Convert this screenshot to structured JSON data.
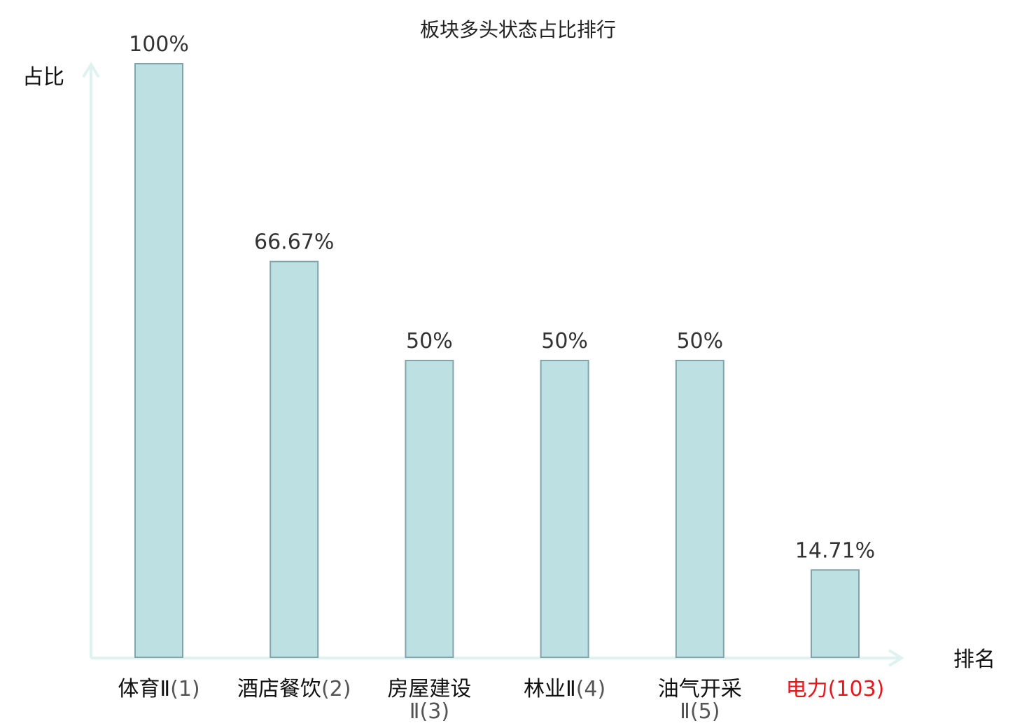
{
  "chart_data": {
    "type": "bar",
    "title": "板块多头状态占比排行",
    "ylabel": "占比",
    "xlabel": "排名",
    "ylim": [
      0,
      100
    ],
    "grid": false,
    "categories": [
      {
        "name": "体育Ⅱ",
        "rank": "(1)",
        "value": 100,
        "label": "100%",
        "highlight": false
      },
      {
        "name": "酒店餐饮",
        "rank": "(2)",
        "value": 66.67,
        "label": "66.67%",
        "highlight": false
      },
      {
        "name": "房屋建设",
        "name_line2": "Ⅱ",
        "rank": "(3)",
        "value": 50,
        "label": "50%",
        "highlight": false
      },
      {
        "name": "林业Ⅱ",
        "rank": "(4)",
        "value": 50,
        "label": "50%",
        "highlight": false
      },
      {
        "name": "油气开采",
        "name_line2": "Ⅱ",
        "rank": "(5)",
        "value": 50,
        "label": "50%",
        "highlight": false
      },
      {
        "name": "电力",
        "rank": "(103)",
        "value": 14.71,
        "label": "14.71%",
        "highlight": true
      }
    ],
    "colors": {
      "bar_fill": "#bde0e3",
      "bar_stroke": "#7fa5aa",
      "axis": "#e0f2ef",
      "highlight": "#e8161b"
    }
  }
}
